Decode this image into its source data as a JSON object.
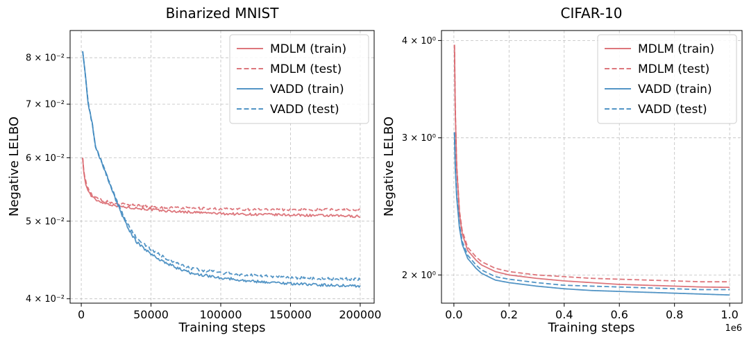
{
  "colors": {
    "mdlm": "#d9676e",
    "vadd": "#3f88bf"
  },
  "chart_data": [
    {
      "type": "line",
      "title": "Binarized MNIST",
      "xlabel": "Training steps",
      "ylabel": "Negative LELBO",
      "yscale": "log",
      "xlim": [
        -8000,
        210000
      ],
      "ylim": [
        0.0395,
        0.0865
      ],
      "xticks": [
        0,
        50000,
        100000,
        150000,
        200000
      ],
      "xtick_labels": [
        "0",
        "50000",
        "100000",
        "150000",
        "200000"
      ],
      "yticks": [
        0.04,
        0.05,
        0.06,
        0.07,
        0.08
      ],
      "ytick_labels": [
        "4 × 10⁻²",
        "5 × 10⁻²",
        "6 × 10⁻²",
        "7 × 10⁻²",
        "8 × 10⁻²"
      ],
      "legend_position": "top-right",
      "series": [
        {
          "name": "MDLM (train)",
          "color_key": "mdlm",
          "dash": "solid",
          "noise": 0.0035,
          "x": [
            1000,
            2000,
            4000,
            7000,
            10000,
            15000,
            20000,
            30000,
            40000,
            50000,
            60000,
            80000,
            100000,
            120000,
            150000,
            175000,
            200000
          ],
          "y": [
            0.06,
            0.057,
            0.055,
            0.0538,
            0.0532,
            0.0528,
            0.0525,
            0.0521,
            0.0519,
            0.0517,
            0.0515,
            0.0513,
            0.0511,
            0.051,
            0.0509,
            0.0508,
            0.0507
          ]
        },
        {
          "name": "MDLM (test)",
          "color_key": "mdlm",
          "dash": "dashed",
          "noise": 0.0035,
          "x": [
            1000,
            2000,
            4000,
            7000,
            10000,
            15000,
            20000,
            30000,
            40000,
            50000,
            60000,
            80000,
            100000,
            120000,
            150000,
            175000,
            200000
          ],
          "y": [
            0.06,
            0.0572,
            0.0553,
            0.0541,
            0.0535,
            0.0531,
            0.0528,
            0.0525,
            0.0523,
            0.0521,
            0.052,
            0.0519,
            0.0518,
            0.0517,
            0.0517,
            0.0517,
            0.0517
          ]
        },
        {
          "name": "VADD (train)",
          "color_key": "vadd",
          "dash": "solid",
          "noise": 0.004,
          "x": [
            1000,
            3000,
            5000,
            8000,
            10000,
            15000,
            20000,
            25000,
            30000,
            35000,
            40000,
            50000,
            60000,
            70000,
            80000,
            100000,
            120000,
            150000,
            175000,
            200000
          ],
          "y": [
            0.0815,
            0.076,
            0.07,
            0.066,
            0.062,
            0.059,
            0.056,
            0.053,
            0.0505,
            0.0485,
            0.047,
            0.0455,
            0.0444,
            0.0436,
            0.043,
            0.0425,
            0.0421,
            0.0418,
            0.0416,
            0.0415
          ]
        },
        {
          "name": "VADD (test)",
          "color_key": "vadd",
          "dash": "dashed",
          "noise": 0.004,
          "x": [
            1000,
            3000,
            5000,
            8000,
            10000,
            15000,
            20000,
            25000,
            30000,
            35000,
            40000,
            50000,
            60000,
            70000,
            80000,
            100000,
            120000,
            150000,
            175000,
            200000
          ],
          "y": [
            0.0815,
            0.076,
            0.07,
            0.066,
            0.062,
            0.059,
            0.056,
            0.0532,
            0.0508,
            0.049,
            0.0475,
            0.0461,
            0.045,
            0.0442,
            0.0436,
            0.0431,
            0.0428,
            0.0425,
            0.0424,
            0.0423
          ]
        }
      ]
    },
    {
      "type": "line",
      "title": "CIFAR-10",
      "xlabel": "Training steps",
      "ylabel": "Negative LELBO",
      "yscale": "log",
      "xlim": [
        -0.045,
        1.045
      ],
      "ylim": [
        1.84,
        4.12
      ],
      "xticks": [
        0,
        0.2,
        0.4,
        0.6,
        0.8,
        1.0
      ],
      "xtick_labels": [
        "0.0",
        "0.2",
        "0.4",
        "0.6",
        "0.8",
        "1.0"
      ],
      "x_offset_label": "1e6",
      "yticks": [
        2,
        3,
        4
      ],
      "ytick_labels": [
        "2 × 10⁰",
        "3 × 10⁰",
        "4 × 10⁰"
      ],
      "legend_position": "top-right",
      "series": [
        {
          "name": "MDLM (train)",
          "color_key": "mdlm",
          "dash": "solid",
          "noise": 0,
          "x": [
            0.002,
            0.005,
            0.01,
            0.02,
            0.03,
            0.05,
            0.08,
            0.1,
            0.15,
            0.2,
            0.3,
            0.4,
            0.5,
            0.6,
            0.7,
            0.8,
            0.9,
            1.0
          ],
          "y": [
            3.95,
            3.25,
            2.75,
            2.4,
            2.26,
            2.15,
            2.09,
            2.06,
            2.02,
            2.0,
            1.98,
            1.965,
            1.955,
            1.945,
            1.94,
            1.935,
            1.93,
            1.928
          ]
        },
        {
          "name": "MDLM (test)",
          "color_key": "mdlm",
          "dash": "dashed",
          "noise": 0,
          "x": [
            0.002,
            0.005,
            0.01,
            0.02,
            0.03,
            0.05,
            0.08,
            0.1,
            0.15,
            0.2,
            0.3,
            0.4,
            0.5,
            0.6,
            0.7,
            0.8,
            0.9,
            1.0
          ],
          "y": [
            3.95,
            3.26,
            2.77,
            2.42,
            2.28,
            2.17,
            2.11,
            2.08,
            2.04,
            2.02,
            2.0,
            1.99,
            1.98,
            1.975,
            1.97,
            1.965,
            1.96,
            1.96
          ]
        },
        {
          "name": "VADD (train)",
          "color_key": "vadd",
          "dash": "solid",
          "noise": 0,
          "x": [
            0.002,
            0.005,
            0.01,
            0.02,
            0.03,
            0.05,
            0.08,
            0.1,
            0.15,
            0.2,
            0.3,
            0.4,
            0.5,
            0.6,
            0.7,
            0.8,
            0.9,
            1.0
          ],
          "y": [
            3.05,
            2.75,
            2.52,
            2.3,
            2.19,
            2.1,
            2.04,
            2.01,
            1.97,
            1.955,
            1.935,
            1.92,
            1.91,
            1.905,
            1.9,
            1.895,
            1.89,
            1.885
          ]
        },
        {
          "name": "VADD (test)",
          "color_key": "vadd",
          "dash": "dashed",
          "noise": 0,
          "x": [
            0.002,
            0.005,
            0.01,
            0.02,
            0.03,
            0.05,
            0.08,
            0.1,
            0.15,
            0.2,
            0.3,
            0.4,
            0.5,
            0.6,
            0.7,
            0.8,
            0.9,
            1.0
          ],
          "y": [
            3.05,
            2.76,
            2.54,
            2.32,
            2.21,
            2.12,
            2.06,
            2.03,
            1.99,
            1.975,
            1.955,
            1.94,
            1.935,
            1.93,
            1.925,
            1.92,
            1.915,
            1.915
          ]
        }
      ]
    }
  ]
}
